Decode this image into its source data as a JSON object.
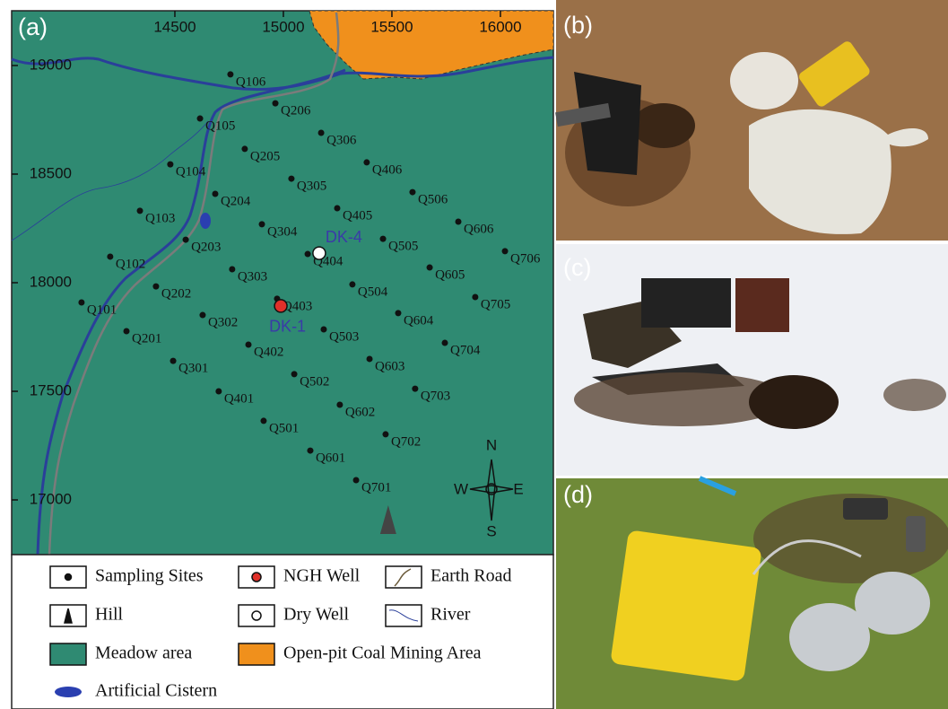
{
  "panels": {
    "a": "(a)",
    "b": "(b)",
    "c": "(c)",
    "d": "(d)"
  },
  "map": {
    "xlim": [
      13748,
      16244
    ],
    "ylim": [
      16748,
      19252
    ],
    "xticks": [
      14500,
      15000,
      15500,
      16000
    ],
    "yticks": [
      17000,
      17500,
      18000,
      18500,
      19000
    ],
    "sites": [
      {
        "label": "Q106",
        "x": 14756,
        "y": 18959
      },
      {
        "label": "Q206",
        "x": 14963,
        "y": 18826
      },
      {
        "label": "Q306",
        "x": 15174,
        "y": 18690
      },
      {
        "label": "Q406",
        "x": 15384,
        "y": 18554
      },
      {
        "label": "Q506",
        "x": 15595,
        "y": 18417
      },
      {
        "label": "Q606",
        "x": 15806,
        "y": 18281
      },
      {
        "label": "Q706",
        "x": 16021,
        "y": 18145
      },
      {
        "label": "Q105",
        "x": 14616,
        "y": 18756
      },
      {
        "label": "Q205",
        "x": 14822,
        "y": 18616
      },
      {
        "label": "Q305",
        "x": 15037,
        "y": 18479
      },
      {
        "label": "Q405",
        "x": 15248,
        "y": 18343
      },
      {
        "label": "Q505",
        "x": 15459,
        "y": 18202
      },
      {
        "label": "Q605",
        "x": 15674,
        "y": 18070
      },
      {
        "label": "Q705",
        "x": 15884,
        "y": 17934
      },
      {
        "label": "Q104",
        "x": 14479,
        "y": 18545
      },
      {
        "label": "Q204",
        "x": 14686,
        "y": 18409
      },
      {
        "label": "Q304",
        "x": 14901,
        "y": 18269
      },
      {
        "label": "Q404",
        "x": 15112,
        "y": 18132
      },
      {
        "label": "Q504",
        "x": 15318,
        "y": 17992
      },
      {
        "label": "Q604",
        "x": 15529,
        "y": 17860
      },
      {
        "label": "Q704",
        "x": 15744,
        "y": 17723
      },
      {
        "label": "Q103",
        "x": 14339,
        "y": 18331
      },
      {
        "label": "Q203",
        "x": 14550,
        "y": 18198
      },
      {
        "label": "Q303",
        "x": 14764,
        "y": 18062
      },
      {
        "label": "Q403",
        "x": 14971,
        "y": 17926
      },
      {
        "label": "Q503",
        "x": 15186,
        "y": 17785
      },
      {
        "label": "Q603",
        "x": 15397,
        "y": 17649
      },
      {
        "label": "Q703",
        "x": 15607,
        "y": 17512
      },
      {
        "label": "Q102",
        "x": 14202,
        "y": 18120
      },
      {
        "label": "Q202",
        "x": 14413,
        "y": 17983
      },
      {
        "label": "Q302",
        "x": 14628,
        "y": 17851
      },
      {
        "label": "Q402",
        "x": 14839,
        "y": 17715
      },
      {
        "label": "Q502",
        "x": 15050,
        "y": 17579
      },
      {
        "label": "Q602",
        "x": 15260,
        "y": 17438
      },
      {
        "label": "Q702",
        "x": 15471,
        "y": 17302
      },
      {
        "label": "Q101",
        "x": 14070,
        "y": 17909
      },
      {
        "label": "Q201",
        "x": 14277,
        "y": 17777
      },
      {
        "label": "Q301",
        "x": 14492,
        "y": 17640
      },
      {
        "label": "Q401",
        "x": 14702,
        "y": 17500
      },
      {
        "label": "Q501",
        "x": 14909,
        "y": 17364
      },
      {
        "label": "Q601",
        "x": 15124,
        "y": 17227
      },
      {
        "label": "Q701",
        "x": 15335,
        "y": 17091
      }
    ],
    "wells": [
      {
        "label": "DK-4",
        "x": 15165,
        "y": 18136,
        "color": "#ffffff"
      },
      {
        "label": "DK-1",
        "x": 14988,
        "y": 17893,
        "color": "#e0302a"
      }
    ],
    "hill": {
      "x": 15483,
      "y": 16905
    },
    "compass": {
      "n": "N",
      "s": "S",
      "w": "W",
      "e": "E"
    }
  },
  "legend": [
    "Sampling Sites",
    "NGH Well",
    "Earth Road",
    "Hill",
    "Dry Well",
    "River",
    "Meadow area",
    "Open-pit Coal Mining Area",
    "Artificial Cistern"
  ]
}
